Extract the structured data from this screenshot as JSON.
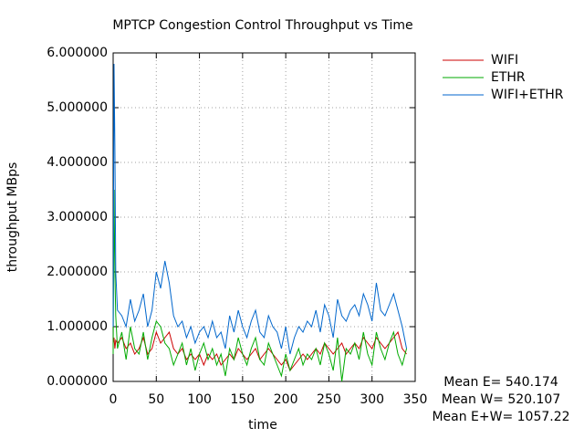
{
  "chart_data": {
    "type": "line",
    "title": "MPTCP Congestion Control Throughput vs Time",
    "x_label": "time",
    "y_label": "throughput MBps",
    "x": [
      0,
      1,
      2,
      3,
      5,
      10,
      15,
      20,
      25,
      30,
      35,
      40,
      45,
      50,
      55,
      60,
      65,
      70,
      75,
      80,
      85,
      90,
      95,
      100,
      105,
      110,
      115,
      120,
      125,
      130,
      135,
      140,
      145,
      150,
      155,
      160,
      165,
      170,
      175,
      180,
      185,
      190,
      195,
      200,
      205,
      210,
      215,
      220,
      225,
      230,
      235,
      240,
      245,
      250,
      255,
      260,
      265,
      270,
      275,
      280,
      285,
      290,
      295,
      300,
      305,
      310,
      315,
      320,
      325,
      330,
      335,
      340
    ],
    "series": [
      {
        "name": "WIFI",
        "color": "#cc0000",
        "values": [
          0.7,
          0.8,
          0.6,
          0.75,
          0.7,
          0.8,
          0.6,
          0.7,
          0.5,
          0.6,
          0.8,
          0.5,
          0.6,
          0.9,
          0.7,
          0.8,
          0.9,
          0.6,
          0.5,
          0.6,
          0.4,
          0.5,
          0.4,
          0.5,
          0.3,
          0.5,
          0.4,
          0.5,
          0.3,
          0.4,
          0.5,
          0.4,
          0.6,
          0.5,
          0.4,
          0.5,
          0.6,
          0.4,
          0.5,
          0.6,
          0.5,
          0.4,
          0.3,
          0.4,
          0.2,
          0.3,
          0.4,
          0.5,
          0.4,
          0.5,
          0.6,
          0.5,
          0.7,
          0.6,
          0.5,
          0.6,
          0.7,
          0.5,
          0.6,
          0.7,
          0.6,
          0.8,
          0.7,
          0.6,
          0.8,
          0.7,
          0.6,
          0.7,
          0.8,
          0.9,
          0.6,
          0.5
        ]
      },
      {
        "name": "ETHR",
        "color": "#00aa00",
        "values": [
          0.5,
          3.5,
          2.0,
          1.2,
          0.6,
          0.9,
          0.4,
          1.0,
          0.6,
          0.5,
          0.9,
          0.4,
          0.8,
          1.1,
          1.0,
          0.7,
          0.6,
          0.3,
          0.5,
          0.7,
          0.3,
          0.6,
          0.2,
          0.5,
          0.7,
          0.4,
          0.6,
          0.3,
          0.5,
          0.1,
          0.6,
          0.4,
          0.8,
          0.5,
          0.3,
          0.6,
          0.8,
          0.4,
          0.3,
          0.7,
          0.5,
          0.3,
          0.1,
          0.5,
          0.2,
          0.4,
          0.6,
          0.3,
          0.5,
          0.4,
          0.6,
          0.3,
          0.7,
          0.5,
          0.2,
          0.8,
          0.0,
          0.6,
          0.5,
          0.7,
          0.4,
          0.9,
          0.5,
          0.3,
          0.9,
          0.6,
          0.4,
          0.7,
          0.9,
          0.5,
          0.3,
          0.6
        ]
      },
      {
        "name": "WIFI+ETHR",
        "color": "#0066cc",
        "values": [
          1.0,
          5.8,
          4.3,
          2.0,
          1.3,
          1.2,
          1.0,
          1.5,
          1.1,
          1.3,
          1.6,
          1.0,
          1.3,
          2.0,
          1.7,
          2.2,
          1.8,
          1.2,
          1.0,
          1.1,
          0.8,
          1.0,
          0.7,
          0.9,
          1.0,
          0.8,
          1.1,
          0.8,
          0.9,
          0.6,
          1.2,
          0.9,
          1.3,
          1.0,
          0.8,
          1.1,
          1.3,
          0.9,
          0.8,
          1.2,
          1.0,
          0.9,
          0.6,
          1.0,
          0.5,
          0.8,
          1.0,
          0.9,
          1.1,
          1.0,
          1.3,
          0.9,
          1.4,
          1.2,
          0.8,
          1.5,
          1.2,
          1.1,
          1.3,
          1.4,
          1.2,
          1.6,
          1.4,
          1.1,
          1.8,
          1.3,
          1.2,
          1.4,
          1.6,
          1.3,
          1.0,
          0.6
        ]
      }
    ],
    "xlim": [
      0,
      350
    ],
    "xticks": [
      0,
      50,
      100,
      150,
      200,
      250,
      300,
      350
    ],
    "ylim": [
      0,
      6
    ],
    "yticks": [
      {
        "value": 0,
        "label": "0.000000"
      },
      {
        "value": 1,
        "label": "1.000000"
      },
      {
        "value": 2,
        "label": "2.000000"
      },
      {
        "value": 3,
        "label": "3.000000"
      },
      {
        "value": 4,
        "label": "4.000000"
      },
      {
        "value": 5,
        "label": "5.000000"
      },
      {
        "value": 6,
        "label": "6.000000"
      }
    ],
    "grid": true,
    "legend": "upper right",
    "annotations": [
      "Mean E= 540.174",
      "Mean W= 520.107",
      "Mean E+W= 1057.22"
    ]
  }
}
